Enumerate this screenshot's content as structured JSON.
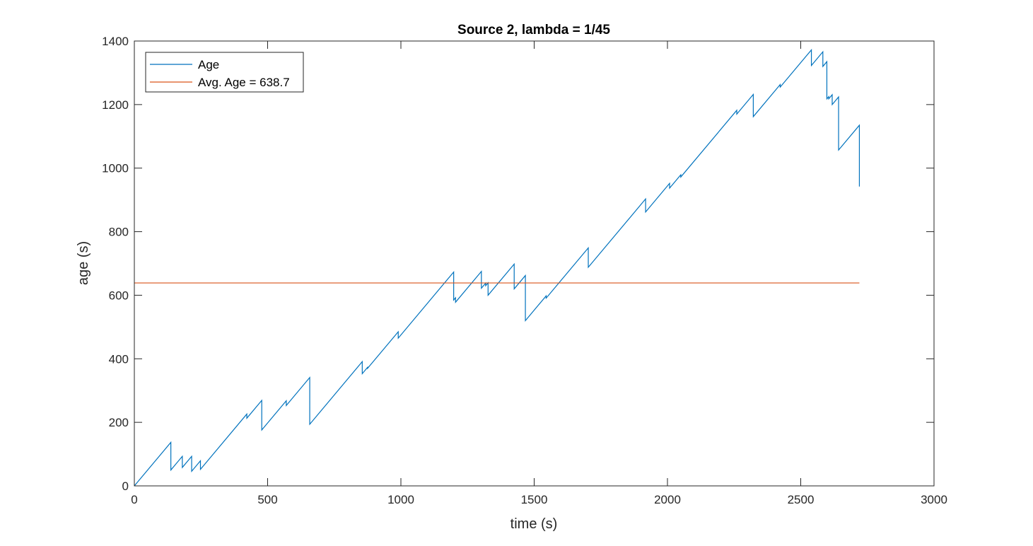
{
  "chart_data": {
    "type": "line",
    "title": "Source 2, lambda = 1/45",
    "xlabel": "time (s)",
    "ylabel": "age (s)",
    "xlim": [
      0,
      3000
    ],
    "ylim": [
      0,
      1400
    ],
    "xticks": [
      0,
      500,
      1000,
      1500,
      2000,
      2500,
      3000
    ],
    "yticks": [
      0,
      200,
      400,
      600,
      800,
      1000,
      1200,
      1400
    ],
    "grid": false,
    "legend_position": "top-left",
    "series": [
      {
        "name": "Age",
        "color": "#0072BD",
        "points": [
          [
            0,
            0
          ],
          [
            137,
            137
          ],
          [
            137,
            50
          ],
          [
            180,
            93
          ],
          [
            180,
            58
          ],
          [
            215,
            93
          ],
          [
            215,
            46
          ],
          [
            248,
            79
          ],
          [
            248,
            52
          ],
          [
            422,
            226
          ],
          [
            422,
            213
          ],
          [
            478,
            269
          ],
          [
            478,
            176
          ],
          [
            570,
            268
          ],
          [
            570,
            253
          ],
          [
            658,
            341
          ],
          [
            658,
            194
          ],
          [
            855,
            391
          ],
          [
            855,
            353
          ],
          [
            875,
            373
          ],
          [
            875,
            370
          ],
          [
            990,
            485
          ],
          [
            990,
            465
          ],
          [
            1198,
            673
          ],
          [
            1198,
            585
          ],
          [
            1205,
            592
          ],
          [
            1205,
            578
          ],
          [
            1302,
            675
          ],
          [
            1302,
            622
          ],
          [
            1318,
            638
          ],
          [
            1318,
            630
          ],
          [
            1327,
            639
          ],
          [
            1327,
            600
          ],
          [
            1425,
            698
          ],
          [
            1425,
            620
          ],
          [
            1467,
            662
          ],
          [
            1467,
            520
          ],
          [
            1545,
            598
          ],
          [
            1545,
            591
          ],
          [
            1703,
            749
          ],
          [
            1703,
            688
          ],
          [
            1918,
            903
          ],
          [
            1918,
            862
          ],
          [
            2008,
            952
          ],
          [
            2008,
            937
          ],
          [
            2050,
            979
          ],
          [
            2050,
            972
          ],
          [
            2260,
            1182
          ],
          [
            2260,
            1170
          ],
          [
            2322,
            1232
          ],
          [
            2322,
            1162
          ],
          [
            2423,
            1263
          ],
          [
            2423,
            1255
          ],
          [
            2540,
            1372
          ],
          [
            2540,
            1323
          ],
          [
            2583,
            1366
          ],
          [
            2583,
            1320
          ],
          [
            2598,
            1335
          ],
          [
            2598,
            1218
          ],
          [
            2605,
            1225
          ],
          [
            2605,
            1218
          ],
          [
            2618,
            1231
          ],
          [
            2618,
            1200
          ],
          [
            2642,
            1224
          ],
          [
            2642,
            1057
          ],
          [
            2720,
            1135
          ],
          [
            2720,
            942
          ]
        ]
      },
      {
        "name": "Avg. Age = 638.7",
        "color": "#D95319",
        "points": [
          [
            0,
            638.7
          ],
          [
            2720,
            638.7
          ]
        ]
      }
    ]
  }
}
